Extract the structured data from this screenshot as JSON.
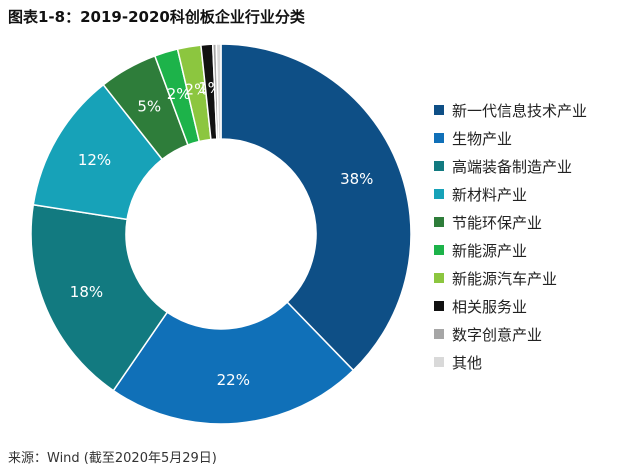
{
  "title": "图表1-8：2019-2020科创板企业行业分类",
  "source": "来源：Wind (截至2020年5月29日)",
  "chart_data": {
    "type": "pie",
    "donut": true,
    "title": "图表1-8：2019-2020科创板企业行业分类",
    "unit": "%",
    "legend_position": "right",
    "slices": [
      {
        "name": "新一代信息技术产业",
        "value": 38,
        "label": "38%",
        "color": "#0e4f86"
      },
      {
        "name": "生物产业",
        "value": 22,
        "label": "22%",
        "color": "#1070b8"
      },
      {
        "name": "高端装备制造产业",
        "value": 18,
        "label": "18%",
        "color": "#127a80"
      },
      {
        "name": "新材料产业",
        "value": 12,
        "label": "12%",
        "color": "#17a2b8"
      },
      {
        "name": "节能环保产业",
        "value": 5,
        "label": "5%",
        "color": "#2e7d3a"
      },
      {
        "name": "新能源产业",
        "value": 2,
        "label": "2%",
        "color": "#1db34a"
      },
      {
        "name": "新能源汽车产业",
        "value": 2,
        "label": "2%",
        "color": "#8cc63f"
      },
      {
        "name": "相关服务业",
        "value": 1,
        "label": "1%",
        "color": "#111111"
      },
      {
        "name": "数字创意产业",
        "value": 0.3,
        "label": "",
        "color": "#a6a6a6"
      },
      {
        "name": "其他",
        "value": 0.4,
        "label": "",
        "color": "#d9d9d9"
      }
    ]
  }
}
